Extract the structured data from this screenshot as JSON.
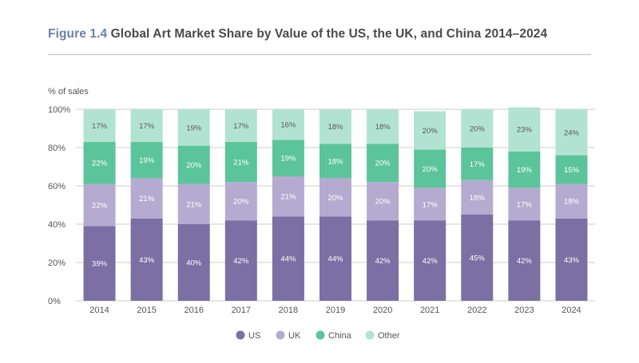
{
  "figure_label": "Figure 1.4",
  "title_text": "Global Art Market Share by Value of the US, the UK, and China 2014–2024",
  "colors": {
    "US": "#7b6fa3",
    "UK": "#b5abd0",
    "China": "#5cc49a",
    "Other": "#b2e3d2",
    "grid": "#cccccc"
  },
  "chart_data": {
    "type": "bar",
    "stacked": true,
    "title": "Figure 1.4 Global Art Market Share by Value of the US, the UK, and China 2014–2024",
    "ylabel": "% of sales",
    "xlabel": "",
    "ylim": [
      0,
      100
    ],
    "yticks": [
      0,
      20,
      40,
      60,
      80,
      100
    ],
    "ytick_labels": [
      "0%",
      "20%",
      "40%",
      "60%",
      "80%",
      "100%"
    ],
    "categories": [
      "2014",
      "2015",
      "2016",
      "2017",
      "2018",
      "2019",
      "2020",
      "2021",
      "2022",
      "2023",
      "2024"
    ],
    "series": [
      {
        "name": "US",
        "values": [
          39,
          43,
          40,
          42,
          44,
          44,
          42,
          42,
          45,
          42,
          43
        ]
      },
      {
        "name": "UK",
        "values": [
          22,
          21,
          21,
          20,
          21,
          20,
          20,
          17,
          18,
          17,
          18
        ]
      },
      {
        "name": "China",
        "values": [
          22,
          19,
          20,
          21,
          19,
          18,
          20,
          20,
          17,
          19,
          15
        ]
      },
      {
        "name": "Other",
        "values": [
          17,
          17,
          19,
          17,
          16,
          18,
          18,
          20,
          20,
          23,
          24
        ]
      }
    ],
    "legend": [
      "US",
      "UK",
      "China",
      "Other"
    ],
    "legend_position": "bottom-center"
  }
}
